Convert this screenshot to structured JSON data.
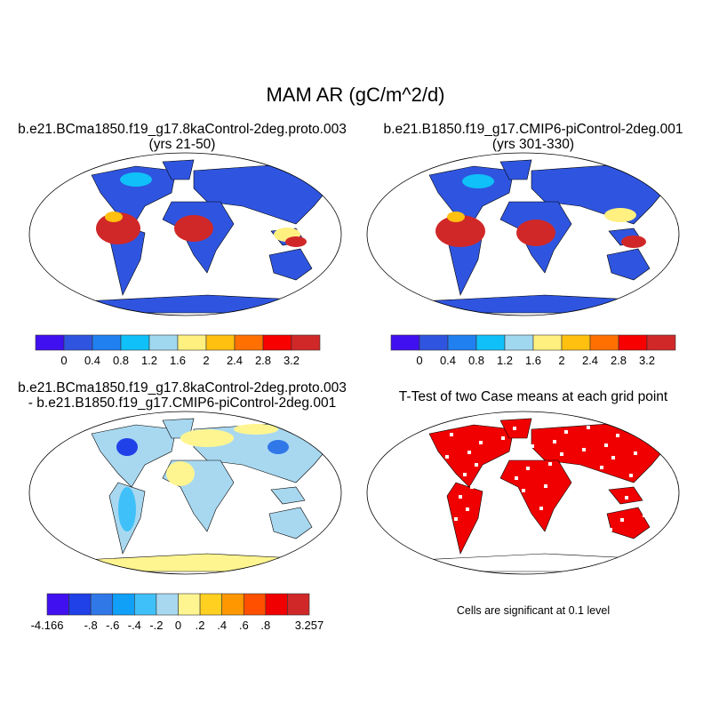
{
  "title": "MAM AR (gC/m^2/d)",
  "panels": [
    {
      "title": "b.e21.BCma1850.f19_g17.8kaControl-2deg.proto.003",
      "subtitle": "(yrs 21-50)"
    },
    {
      "title": "b.e21.B1850.f19_g17.CMIP6-piControl-2deg.001",
      "subtitle": "(yrs 301-330)"
    },
    {
      "title": "b.e21.BCma1850.f19_g17.8kaControl-2deg.proto.003",
      "subtitle": "- b.e21.B1850.f19_g17.CMIP6-piControl-2deg.001"
    },
    {
      "title": "T-Test of two Case means at each grid point",
      "subtitle": ""
    }
  ],
  "ttest_note": "Cells are significant at 0.1 level",
  "chart_data": [
    {
      "type": "colorbar",
      "name": "case colorbar",
      "colors": [
        "#4010f0",
        "#2f55e0",
        "#2080f0",
        "#10c0f8",
        "#a0d8f0",
        "#fff080",
        "#ffc010",
        "#ff7000",
        "#f80000",
        "#d02828"
      ],
      "labels": [
        "0",
        "0.4",
        "0.8",
        "1.2",
        "1.6",
        "2",
        "2.4",
        "2.8",
        "3.2"
      ]
    },
    {
      "type": "colorbar",
      "name": "difference colorbar",
      "colors": [
        "#4010f0",
        "#2040e8",
        "#3078e8",
        "#10a0f8",
        "#40c0f8",
        "#a8d8f0",
        "#fff590",
        "#ffd020",
        "#ff9800",
        "#ff5000",
        "#f00000",
        "#d02828"
      ],
      "labels": [
        "-4.166",
        "-.8",
        "-.6",
        "-.4",
        "-.2",
        "0",
        ".2",
        ".4",
        ".6",
        ".8",
        "3.257"
      ]
    },
    {
      "type": "map",
      "projection": "robinson",
      "panel": "case 1",
      "palette": "case colorbar"
    },
    {
      "type": "map",
      "projection": "robinson",
      "panel": "case 2",
      "palette": "case colorbar"
    },
    {
      "type": "map",
      "projection": "robinson",
      "panel": "difference",
      "palette": "difference colorbar"
    },
    {
      "type": "map",
      "projection": "robinson",
      "panel": "t-test",
      "significant_color": "#f00000"
    }
  ]
}
